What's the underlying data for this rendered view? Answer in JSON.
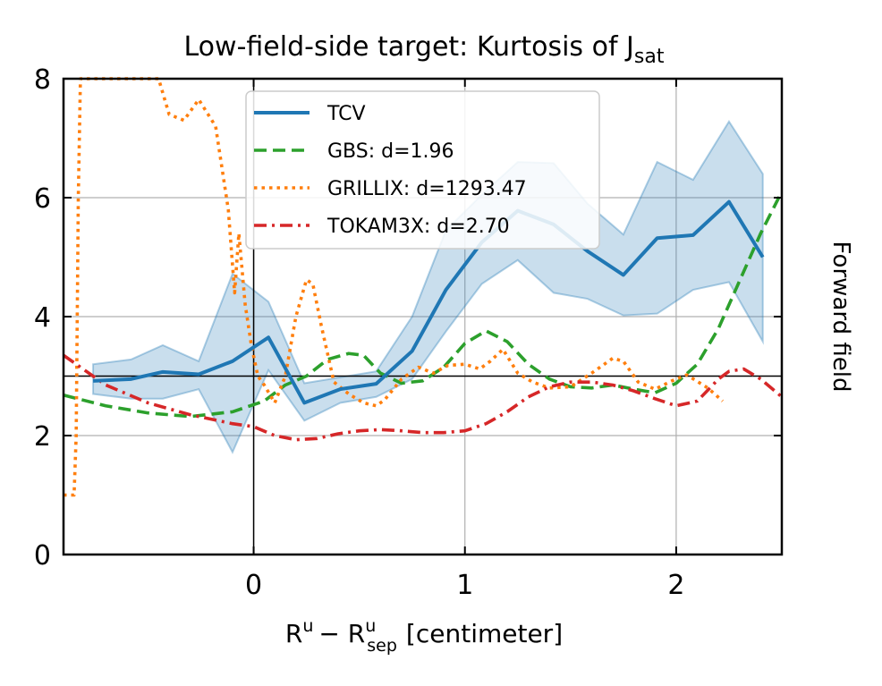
{
  "chart_data": {
    "type": "line",
    "title": "Low-field-side target: Kurtosis of J",
    "title_subscript": "sat",
    "xlabel_base": "R",
    "xlabel_sup1": "u",
    "xlabel_minus": "− R",
    "xlabel_sup2": "u",
    "xlabel_sub2": "sep",
    "xlabel_unit": "[centimeter]",
    "right_label": "Forward field",
    "xlim": [
      -0.9,
      2.5
    ],
    "ylim": [
      0,
      8
    ],
    "xticks": [
      0,
      1,
      2
    ],
    "xtick_labels": [
      "0",
      "1",
      "2"
    ],
    "yticks": [
      0,
      2,
      4,
      6,
      8
    ],
    "ytick_labels": [
      "0",
      "2",
      "4",
      "6",
      "8"
    ],
    "grid": true,
    "reference_lines": {
      "x": 0,
      "y": 3
    },
    "legend_position": "top-center",
    "series": [
      {
        "name": "TCV",
        "style": "solid",
        "color": "#1f77b4",
        "x": [
          -0.76,
          -0.58,
          -0.43,
          -0.26,
          -0.1,
          0.07,
          0.24,
          0.41,
          0.58,
          0.75,
          0.91,
          1.08,
          1.25,
          1.42,
          1.58,
          1.75,
          1.91,
          2.08,
          2.25,
          2.41
        ],
        "y": [
          2.92,
          2.95,
          3.07,
          3.03,
          3.25,
          3.65,
          2.55,
          2.78,
          2.87,
          3.42,
          4.45,
          5.25,
          5.78,
          5.55,
          5.1,
          4.7,
          5.32,
          5.37,
          5.93,
          5.0
        ],
        "band_upper": [
          3.2,
          3.28,
          3.52,
          3.25,
          4.72,
          4.25,
          2.88,
          2.98,
          3.08,
          4.0,
          5.45,
          6.05,
          6.6,
          6.58,
          5.9,
          5.38,
          6.6,
          6.3,
          7.28,
          6.4
        ],
        "band_lower": [
          2.7,
          2.62,
          2.62,
          2.78,
          1.72,
          3.1,
          2.25,
          2.55,
          2.65,
          2.95,
          3.75,
          4.55,
          4.95,
          4.4,
          4.3,
          4.02,
          4.05,
          4.45,
          4.58,
          3.58
        ],
        "band_color": "#1f77b4"
      },
      {
        "name": "GBS: d=1.96",
        "style": "dashed",
        "color": "#2ca02c",
        "x": [
          -0.9,
          -0.7,
          -0.5,
          -0.3,
          -0.1,
          0.05,
          0.15,
          0.25,
          0.35,
          0.45,
          0.52,
          0.6,
          0.7,
          0.8,
          0.9,
          1.0,
          1.1,
          1.2,
          1.3,
          1.4,
          1.5,
          1.6,
          1.7,
          1.8,
          1.9,
          2.0,
          2.1,
          2.2,
          2.3,
          2.4,
          2.5
        ],
        "y": [
          2.68,
          2.5,
          2.38,
          2.32,
          2.4,
          2.58,
          2.85,
          3.0,
          3.28,
          3.38,
          3.35,
          3.05,
          2.88,
          2.92,
          3.15,
          3.55,
          3.76,
          3.58,
          3.2,
          2.95,
          2.82,
          2.8,
          2.85,
          2.78,
          2.72,
          2.88,
          3.2,
          3.8,
          4.6,
          5.4,
          6.1
        ]
      },
      {
        "name": "GRILLIX: d=1293.47",
        "style": "dotted",
        "color": "#ff7f0e",
        "x": [
          -0.9,
          -0.85,
          -0.84,
          -0.83,
          -0.82,
          -0.45,
          -0.4,
          -0.33,
          -0.26,
          -0.18,
          -0.12,
          -0.09,
          -0.07,
          -0.04,
          -0.01,
          0.02,
          0.05,
          0.1,
          0.15,
          0.2,
          0.25,
          0.28,
          0.32,
          0.38,
          0.45,
          0.52,
          0.58,
          0.62,
          0.7,
          0.78,
          0.85,
          0.92,
          1.0,
          1.07,
          1.12,
          1.18,
          1.25,
          1.32,
          1.4,
          1.5,
          1.6,
          1.7,
          1.75,
          1.82,
          1.9,
          1.98,
          2.05,
          2.15,
          2.22
        ],
        "y": [
          1.0,
          1.0,
          2.0,
          6.0,
          8.0,
          8.0,
          7.4,
          7.3,
          7.65,
          7.2,
          5.8,
          4.4,
          5.4,
          4.2,
          3.5,
          3.0,
          2.85,
          2.55,
          3.0,
          4.0,
          4.62,
          4.55,
          3.85,
          2.9,
          2.7,
          2.55,
          2.5,
          2.6,
          2.95,
          3.15,
          3.05,
          3.18,
          3.2,
          3.12,
          3.25,
          3.45,
          3.05,
          2.9,
          2.8,
          2.82,
          3.05,
          3.3,
          3.25,
          2.9,
          2.78,
          2.92,
          3.02,
          2.8,
          2.58
        ]
      },
      {
        "name": "TOKAM3X: d=2.70",
        "style": "dashdot",
        "color": "#d62728",
        "x": [
          -0.9,
          -0.7,
          -0.5,
          -0.3,
          -0.1,
          0.0,
          0.1,
          0.2,
          0.3,
          0.4,
          0.5,
          0.6,
          0.7,
          0.8,
          0.9,
          1.0,
          1.1,
          1.2,
          1.3,
          1.4,
          1.5,
          1.6,
          1.7,
          1.8,
          1.9,
          2.0,
          2.1,
          2.2,
          2.25,
          2.32,
          2.4,
          2.5
        ],
        "y": [
          3.35,
          2.85,
          2.55,
          2.35,
          2.2,
          2.15,
          2.0,
          1.93,
          1.95,
          2.03,
          2.08,
          2.1,
          2.08,
          2.05,
          2.05,
          2.08,
          2.2,
          2.4,
          2.65,
          2.82,
          2.9,
          2.9,
          2.85,
          2.75,
          2.62,
          2.5,
          2.58,
          2.95,
          3.08,
          3.12,
          2.95,
          2.65
        ]
      }
    ]
  }
}
